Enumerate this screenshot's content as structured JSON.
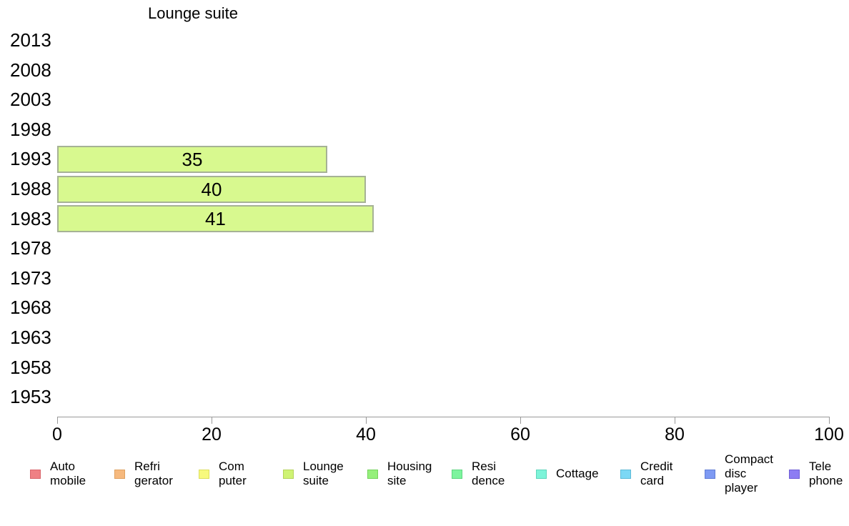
{
  "chart_data": {
    "type": "bar",
    "orientation": "horizontal",
    "title": "Lounge suite",
    "categories": [
      "2013",
      "2008",
      "2003",
      "1998",
      "1993",
      "1988",
      "1983",
      "1978",
      "1973",
      "1968",
      "1963",
      "1958",
      "1953"
    ],
    "values": [
      null,
      null,
      null,
      null,
      35,
      40,
      41,
      null,
      null,
      null,
      null,
      null,
      null
    ],
    "xlim": [
      0,
      100
    ],
    "x_ticks": [
      0,
      20,
      40,
      60,
      80,
      100
    ],
    "grid": "off",
    "bar_color": "#d8f98f",
    "bar_border_color": "#a6b295",
    "axis_color": "#999999",
    "legend_position": "bottom",
    "legend": [
      {
        "label": "Auto\nmobile",
        "color": "#ef8084",
        "border": "#d9666c"
      },
      {
        "label": "Refri\ngerator",
        "color": "#f6b97e",
        "border": "#dfa160"
      },
      {
        "label": "Com\nputer",
        "color": "#f7f97d",
        "border": "#dcde5f"
      },
      {
        "label": "Lounge\nsuite",
        "color": "#cff374",
        "border": "#b5d35c"
      },
      {
        "label": "Housing\nsite",
        "color": "#95f07b",
        "border": "#74d35c"
      },
      {
        "label": "Resi\ndence",
        "color": "#7df49e",
        "border": "#5ed680"
      },
      {
        "label": "Cottage",
        "color": "#7df4d9",
        "border": "#5ed6bb"
      },
      {
        "label": "Credit\ncard",
        "color": "#7cd8f5",
        "border": "#5ebad7"
      },
      {
        "label": "Compact\ndisc\nplayer",
        "color": "#7e9af3",
        "border": "#607cd5"
      },
      {
        "label": "Tele\nphone",
        "color": "#8d7df3",
        "border": "#6f5ed5"
      }
    ]
  }
}
